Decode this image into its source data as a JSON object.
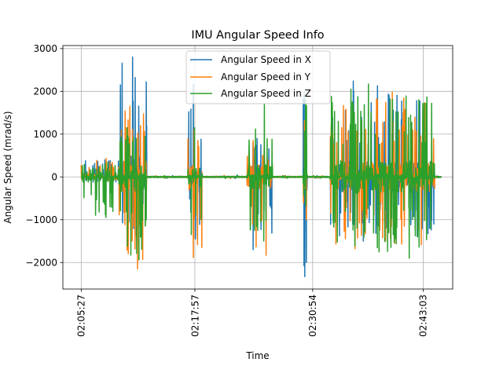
{
  "chart_data": {
    "type": "line",
    "title": "IMU Angular Speed Info",
    "xlabel": "Time",
    "ylabel": "Angular Speed (mrad/s)",
    "x_tick_labels": [
      "02:05:27",
      "02:17:57",
      "02:30:54",
      "02:43:03"
    ],
    "x_tick_seconds": [
      7527,
      8277,
      9054,
      9783
    ],
    "xlim_seconds": [
      7406,
      9978
    ],
    "ylim": [
      -2620,
      3070
    ],
    "yticks": [
      3000,
      2000,
      1000,
      0,
      -1000,
      -2000
    ],
    "ytick_labels": [
      "3000",
      "2000",
      "1000",
      "0",
      "−1000",
      "−2000"
    ],
    "grid": true,
    "legend_position": "upper-center",
    "series": [
      {
        "name": "Angular Speed in X",
        "color": "#1f77b4",
        "bursts": [
          {
            "start": 7527,
            "end": 7775,
            "min": -120,
            "max": 400,
            "fine_amp": 20
          },
          {
            "start": 7775,
            "end": 7960,
            "min": -1380,
            "max": 2800,
            "fine_amp": 60
          },
          {
            "start": 7960,
            "end": 8230,
            "min": -30,
            "max": 30,
            "fine_amp": 15
          },
          {
            "start": 8230,
            "end": 8328,
            "min": -1450,
            "max": 2150,
            "fine_amp": 40
          },
          {
            "start": 8328,
            "end": 8620,
            "min": -40,
            "max": 40,
            "fine_amp": 15
          },
          {
            "start": 8620,
            "end": 8790,
            "min": -1700,
            "max": 900,
            "fine_amp": 50
          },
          {
            "start": 8790,
            "end": 8992,
            "min": -30,
            "max": 30,
            "fine_amp": 15
          },
          {
            "start": 8992,
            "end": 9020,
            "min": -2330,
            "max": 1980,
            "fine_amp": 60
          },
          {
            "start": 9020,
            "end": 9170,
            "min": -30,
            "max": 30,
            "fine_amp": 15
          },
          {
            "start": 9170,
            "end": 9860,
            "min": -1500,
            "max": 2240,
            "fine_amp": 60
          },
          {
            "start": 9860,
            "end": 9905,
            "min": -20,
            "max": 20,
            "fine_amp": 10
          }
        ]
      },
      {
        "name": "Angular Speed in Y",
        "color": "#ff7f0e",
        "bursts": [
          {
            "start": 7527,
            "end": 7775,
            "min": -50,
            "max": 430,
            "fine_amp": 20
          },
          {
            "start": 7775,
            "end": 7960,
            "min": -2150,
            "max": 1650,
            "fine_amp": 60
          },
          {
            "start": 7960,
            "end": 8230,
            "min": -30,
            "max": 30,
            "fine_amp": 15
          },
          {
            "start": 8230,
            "end": 8328,
            "min": -1880,
            "max": 1100,
            "fine_amp": 40
          },
          {
            "start": 8328,
            "end": 8620,
            "min": -40,
            "max": 40,
            "fine_amp": 15
          },
          {
            "start": 8620,
            "end": 8790,
            "min": -1830,
            "max": 850,
            "fine_amp": 50
          },
          {
            "start": 8790,
            "end": 8992,
            "min": -30,
            "max": 30,
            "fine_amp": 15
          },
          {
            "start": 8992,
            "end": 9020,
            "min": -1000,
            "max": 1580,
            "fine_amp": 60
          },
          {
            "start": 9020,
            "end": 9170,
            "min": -30,
            "max": 30,
            "fine_amp": 15
          },
          {
            "start": 9170,
            "end": 9860,
            "min": -1680,
            "max": 1980,
            "fine_amp": 60
          },
          {
            "start": 9860,
            "end": 9905,
            "min": -20,
            "max": 20,
            "fine_amp": 10
          }
        ]
      },
      {
        "name": "Angular Speed in Z",
        "color": "#2ca02c",
        "bursts": [
          {
            "start": 7527,
            "end": 7775,
            "min": -950,
            "max": 350,
            "fine_amp": 20
          },
          {
            "start": 7775,
            "end": 7960,
            "min": -1940,
            "max": 1150,
            "fine_amp": 60
          },
          {
            "start": 7960,
            "end": 8230,
            "min": -30,
            "max": 30,
            "fine_amp": 15
          },
          {
            "start": 8230,
            "end": 8328,
            "min": -1350,
            "max": 1150,
            "fine_amp": 40
          },
          {
            "start": 8328,
            "end": 8620,
            "min": -40,
            "max": 40,
            "fine_amp": 15
          },
          {
            "start": 8620,
            "end": 8790,
            "min": -1500,
            "max": 1700,
            "fine_amp": 50
          },
          {
            "start": 8790,
            "end": 8992,
            "min": -30,
            "max": 30,
            "fine_amp": 15
          },
          {
            "start": 8992,
            "end": 9020,
            "min": -670,
            "max": 1800,
            "fine_amp": 60
          },
          {
            "start": 9020,
            "end": 9170,
            "min": -30,
            "max": 30,
            "fine_amp": 15
          },
          {
            "start": 9170,
            "end": 9860,
            "min": -1900,
            "max": 2170,
            "fine_amp": 60
          },
          {
            "start": 9860,
            "end": 9905,
            "min": -20,
            "max": 20,
            "fine_amp": 10
          }
        ]
      }
    ]
  }
}
